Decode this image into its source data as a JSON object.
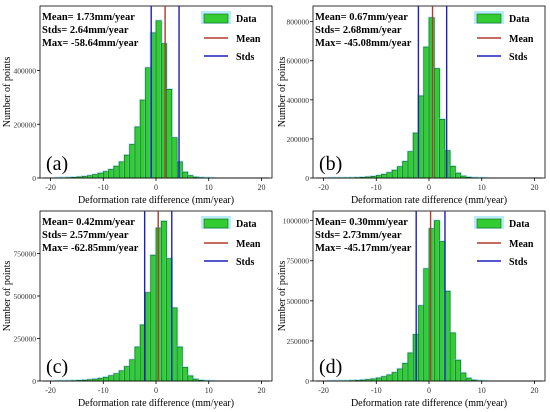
{
  "colors": {
    "bar_fill": "#33cc33",
    "bar_edge": "#1a5e1a",
    "mean_line": "#b03a2e",
    "std_line": "#1f1fbf",
    "halo": "#5fd8f0"
  },
  "legend": {
    "data": "Data",
    "mean": "Mean",
    "stds": "Stds"
  },
  "chart_data": [
    {
      "type": "bar",
      "panel_label": "(a)",
      "stats": [
        "Mean= 1.73mm/year",
        "Stds= 2.64mm/year",
        "Max= -58.64mm/year"
      ],
      "xlabel": "Deformation rate difference (mm/year)",
      "ylabel": "Number of points",
      "xlim": [
        -22,
        22
      ],
      "ylim": [
        0,
        640000
      ],
      "xticks": [
        "-20",
        "-10",
        "0",
        "10",
        "20"
      ],
      "yticks": [
        {
          "value": 0,
          "label": "0"
        },
        {
          "value": 200000,
          "label": "200000"
        },
        {
          "value": 400000,
          "label": "400000"
        }
      ],
      "mean": 1.73,
      "stds": [
        -0.91,
        4.37
      ],
      "bins_start": -19,
      "bin_width": 1,
      "values": [
        500,
        900,
        1500,
        2500,
        4000,
        6000,
        9000,
        13000,
        18000,
        24000,
        32000,
        44000,
        60000,
        85000,
        125000,
        190000,
        290000,
        410000,
        540000,
        585000,
        500000,
        330000,
        150000,
        60000,
        22000,
        9000,
        3500,
        1500,
        600,
        300,
        0,
        0,
        0,
        0,
        0,
        0,
        0,
        0,
        0
      ]
    },
    {
      "type": "bar",
      "panel_label": "(b)",
      "stats": [
        "Mean= 0.67mm/year",
        "Stds= 2.68mm/year",
        "Max= -45.08mm/year"
      ],
      "xlabel": "Deformation rate difference (mm/year)",
      "ylabel": "Number of points",
      "xlim": [
        -22,
        22
      ],
      "ylim": [
        0,
        880000
      ],
      "xticks": [
        "-20",
        "-10",
        "0",
        "10",
        "20"
      ],
      "yticks": [
        {
          "value": 0,
          "label": "0"
        },
        {
          "value": 200000,
          "label": "200000"
        },
        {
          "value": 400000,
          "label": "400000"
        },
        {
          "value": 600000,
          "label": "600000"
        },
        {
          "value": 800000,
          "label": "800000"
        }
      ],
      "mean": 0.67,
      "stds": [
        -2.01,
        3.35
      ],
      "bins_start": -19,
      "bin_width": 1,
      "values": [
        100,
        200,
        400,
        700,
        1200,
        2000,
        3500,
        5500,
        8500,
        13000,
        19000,
        28000,
        40000,
        58000,
        85000,
        135000,
        230000,
        420000,
        670000,
        820000,
        560000,
        300000,
        140000,
        60000,
        25000,
        10000,
        4000,
        1500,
        600,
        200,
        0,
        0,
        0,
        0,
        0,
        0,
        0,
        0,
        0
      ]
    },
    {
      "type": "bar",
      "panel_label": "(c)",
      "stats": [
        "Mean= 0.42mm/year",
        "Stds= 2.57mm/year",
        "Max= -62.85mm/year"
      ],
      "xlabel": "Deformation rate difference (mm/year)",
      "ylabel": "Number of points",
      "xlim": [
        -22,
        22
      ],
      "ylim": [
        0,
        1000000
      ],
      "xticks": [
        "-20",
        "-10",
        "0",
        "10",
        "20"
      ],
      "yticks": [
        {
          "value": 0,
          "label": "0"
        },
        {
          "value": 250000,
          "label": "250000"
        },
        {
          "value": 500000,
          "label": "500000"
        },
        {
          "value": 750000,
          "label": "750000"
        }
      ],
      "mean": 0.42,
      "stds": [
        -2.15,
        2.99
      ],
      "bins_start": -19,
      "bin_width": 1,
      "values": [
        300,
        600,
        1100,
        2000,
        3300,
        5000,
        7500,
        11000,
        16000,
        22000,
        31000,
        43000,
        60000,
        85000,
        125000,
        200000,
        330000,
        520000,
        740000,
        900000,
        940000,
        720000,
        430000,
        200000,
        80000,
        30000,
        11000,
        4000,
        1500,
        500,
        0,
        0,
        0,
        0,
        0,
        0,
        0,
        0,
        0
      ]
    },
    {
      "type": "bar",
      "panel_label": "(d)",
      "stats": [
        "Mean= 0.30mm/year",
        "Stds= 2.73mm/year",
        "Max= -45.17mm/year"
      ],
      "xlabel": "Deformation rate difference (mm/year)",
      "ylabel": "Number of points",
      "xlim": [
        -22,
        22
      ],
      "ylim": [
        0,
        1060000
      ],
      "xticks": [
        "-20",
        "-10",
        "0",
        "10",
        "20"
      ],
      "yticks": [
        {
          "value": 0,
          "label": "0"
        },
        {
          "value": 250000,
          "label": "250000"
        },
        {
          "value": 500000,
          "label": "500000"
        },
        {
          "value": 750000,
          "label": "750000"
        },
        {
          "value": 1000000,
          "label": "1000000"
        }
      ],
      "mean": 0.3,
      "stds": [
        -2.43,
        3.03
      ],
      "bins_start": -19,
      "bin_width": 1,
      "values": [
        200,
        400,
        800,
        1400,
        2400,
        3800,
        6000,
        9000,
        13000,
        19000,
        27000,
        38000,
        53000,
        75000,
        110000,
        175000,
        290000,
        470000,
        700000,
        950000,
        1000000,
        870000,
        560000,
        300000,
        130000,
        50000,
        18000,
        6000,
        2000,
        600,
        0,
        0,
        0,
        0,
        0,
        0,
        0,
        0,
        0
      ]
    }
  ]
}
